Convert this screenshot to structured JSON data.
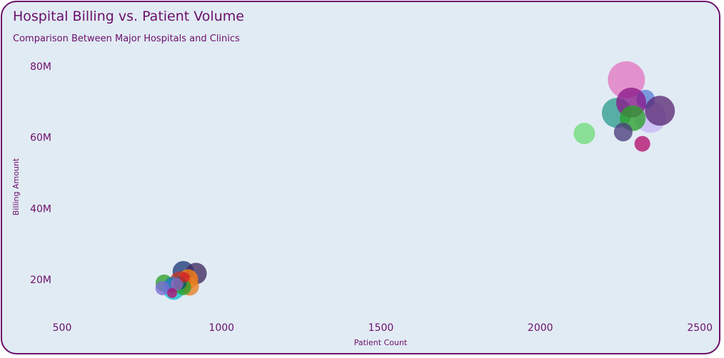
{
  "chart_data": {
    "type": "scatter",
    "title": "Hospital Billing vs. Patient Volume",
    "subtitle": "Comparison Between Major Hospitals and Clinics",
    "xlabel": "Patient Count",
    "ylabel": "Billing Amount",
    "xlim": [
      500,
      2500
    ],
    "ylim": [
      10000000,
      85000000
    ],
    "x_ticks": [
      500,
      1000,
      1500,
      2000,
      2500
    ],
    "y_ticks": [
      {
        "value": 20000000,
        "label": "20M"
      },
      {
        "value": 40000000,
        "label": "40M"
      },
      {
        "value": 60000000,
        "label": "60M"
      },
      {
        "value": 80000000,
        "label": "80M"
      }
    ],
    "grid": false,
    "legend": "none",
    "points": [
      {
        "x": 2270,
        "y": 76200000,
        "size": 52,
        "color": "#e377c2"
      },
      {
        "x": 2345,
        "y": 65700000,
        "size": 44,
        "color": "#c7b8f5"
      },
      {
        "x": 2330,
        "y": 70800000,
        "size": 26,
        "color": "#5b7fd6"
      },
      {
        "x": 2240,
        "y": 66900000,
        "size": 42,
        "color": "#2f9c8e"
      },
      {
        "x": 2285,
        "y": 69800000,
        "size": 42,
        "color": "#8a1a8a"
      },
      {
        "x": 2290,
        "y": 65400000,
        "size": 36,
        "color": "#2ca02c"
      },
      {
        "x": 2375,
        "y": 67500000,
        "size": 42,
        "color": "#5a2a74"
      },
      {
        "x": 2138,
        "y": 61100000,
        "size": 30,
        "color": "#6fdc7a"
      },
      {
        "x": 2260,
        "y": 61500000,
        "size": 26,
        "color": "#4a3c7c"
      },
      {
        "x": 2320,
        "y": 58200000,
        "size": 22,
        "color": "#b5106f"
      },
      {
        "x": 880,
        "y": 22200000,
        "size": 30,
        "color": "#1f3b77"
      },
      {
        "x": 920,
        "y": 21700000,
        "size": 30,
        "color": "#3f2a5f"
      },
      {
        "x": 820,
        "y": 19000000,
        "size": 24,
        "color": "#2ca02c"
      },
      {
        "x": 895,
        "y": 20100000,
        "size": 28,
        "color": "#ff7f0e"
      },
      {
        "x": 870,
        "y": 19300000,
        "size": 30,
        "color": "#c0392b"
      },
      {
        "x": 900,
        "y": 18100000,
        "size": 26,
        "color": "#e67e22"
      },
      {
        "x": 850,
        "y": 17300000,
        "size": 30,
        "color": "#17becf"
      },
      {
        "x": 845,
        "y": 18500000,
        "size": 22,
        "color": "#1f77b4"
      },
      {
        "x": 815,
        "y": 17600000,
        "size": 20,
        "color": "#7b6bd6"
      },
      {
        "x": 880,
        "y": 17800000,
        "size": 22,
        "color": "#2ca02c"
      },
      {
        "x": 870,
        "y": 19000000,
        "size": 18,
        "color": "#0b4f6c"
      },
      {
        "x": 860,
        "y": 18700000,
        "size": 18,
        "color": "#9467bd"
      },
      {
        "x": 845,
        "y": 16200000,
        "size": 14,
        "color": "#b5106f"
      },
      {
        "x": 885,
        "y": 20600000,
        "size": 14,
        "color": "#d62728"
      }
    ]
  }
}
